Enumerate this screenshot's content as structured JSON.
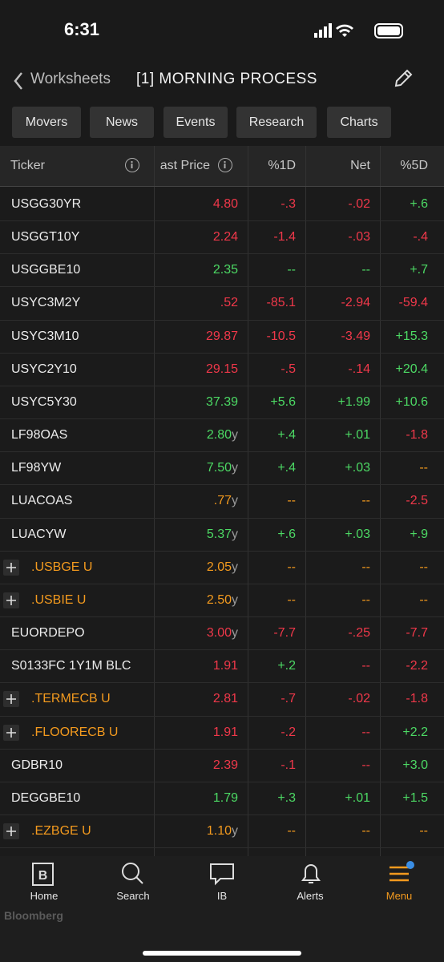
{
  "status": {
    "time": "6:31"
  },
  "header": {
    "back": "Worksheets",
    "title": "[1] MORNING PROCESS"
  },
  "tabs": [
    "Movers",
    "News",
    "Events",
    "Research",
    "Charts"
  ],
  "table": {
    "columns": [
      "Ticker",
      "ast Price",
      "%1D",
      "Net",
      "%5D"
    ],
    "rows": [
      {
        "ticker": "USGG30YR",
        "price": "4.80",
        "d1": "-.3",
        "net": "-.02",
        "d5": "+.6",
        "colors": [
          "r",
          "r",
          "r",
          "g"
        ]
      },
      {
        "ticker": "USGGT10Y",
        "price": "2.24",
        "d1": "-1.4",
        "net": "-.03",
        "d5": "-.4",
        "colors": [
          "r",
          "r",
          "r",
          "r"
        ]
      },
      {
        "ticker": "USGGBE10",
        "price": "2.35",
        "d1": "--",
        "net": "--",
        "d5": "+.7",
        "colors": [
          "g",
          "g",
          "g",
          "g"
        ]
      },
      {
        "ticker": "USYC3M2Y",
        "price": ".52",
        "d1": "-85.1",
        "net": "-2.94",
        "d5": "-59.4",
        "colors": [
          "r",
          "r",
          "r",
          "r"
        ]
      },
      {
        "ticker": "USYC3M10",
        "price": "29.87",
        "d1": "-10.5",
        "net": "-3.49",
        "d5": "+15.3",
        "colors": [
          "r",
          "r",
          "r",
          "g"
        ]
      },
      {
        "ticker": "USYC2Y10",
        "price": "29.15",
        "d1": "-.5",
        "net": "-.14",
        "d5": "+20.4",
        "colors": [
          "r",
          "r",
          "r",
          "g"
        ]
      },
      {
        "ticker": "USYC5Y30",
        "price": "37.39",
        "d1": "+5.6",
        "net": "+1.99",
        "d5": "+10.6",
        "colors": [
          "g",
          "g",
          "g",
          "g"
        ]
      },
      {
        "ticker": "LF98OAS",
        "price": "2.80",
        "unit": "y",
        "d1": "+.4",
        "net": "+.01",
        "d5": "-1.8",
        "colors": [
          "g",
          "g",
          "g",
          "r"
        ]
      },
      {
        "ticker": "LF98YW",
        "price": "7.50",
        "unit": "y",
        "d1": "+.4",
        "net": "+.03",
        "d5": "--",
        "colors": [
          "g",
          "g",
          "g",
          "o"
        ]
      },
      {
        "ticker": "LUACOAS",
        "price": ".77",
        "unit": "y",
        "d1": "--",
        "net": "--",
        "d5": "-2.5",
        "colors": [
          "o",
          "o",
          "o",
          "r"
        ]
      },
      {
        "ticker": "LUACYW",
        "price": "5.37",
        "unit": "y",
        "d1": "+.6",
        "net": "+.03",
        "d5": "+.9",
        "colors": [
          "g",
          "g",
          "g",
          "g"
        ]
      },
      {
        "ticker": ".USBGE U",
        "expandable": true,
        "price": "2.05",
        "unit": "y",
        "d1": "--",
        "net": "--",
        "d5": "--",
        "colors": [
          "o",
          "o",
          "o",
          "o"
        ]
      },
      {
        "ticker": ".USBIE U",
        "expandable": true,
        "price": "2.50",
        "unit": "y",
        "d1": "--",
        "net": "--",
        "d5": "--",
        "colors": [
          "o",
          "o",
          "o",
          "o"
        ]
      },
      {
        "ticker": "EUORDEPO",
        "price": "3.00",
        "unit": "y",
        "d1": "-7.7",
        "net": "-.25",
        "d5": "-7.7",
        "colors": [
          "r",
          "r",
          "r",
          "r"
        ]
      },
      {
        "ticker": "S0133FC 1Y1M BLC",
        "price": "1.91",
        "d1": "+.2",
        "net": "--",
        "d5": "-2.2",
        "colors": [
          "r",
          "g",
          "r",
          "r"
        ]
      },
      {
        "ticker": ".TERMECB U",
        "expandable": true,
        "price": "2.81",
        "d1": "-.7",
        "net": "-.02",
        "d5": "-1.8",
        "colors": [
          "r",
          "r",
          "r",
          "r"
        ]
      },
      {
        "ticker": ".FLOORECB U",
        "expandable": true,
        "price": "1.91",
        "d1": "-.2",
        "net": "--",
        "d5": "+2.2",
        "colors": [
          "r",
          "r",
          "r",
          "g"
        ]
      },
      {
        "ticker": "GDBR10",
        "price": "2.39",
        "d1": "-.1",
        "net": "--",
        "d5": "+3.0",
        "colors": [
          "r",
          "r",
          "r",
          "g"
        ]
      },
      {
        "ticker": "DEGGBE10",
        "price": "1.79",
        "d1": "+.3",
        "net": "+.01",
        "d5": "+1.5",
        "colors": [
          "g",
          "g",
          "g",
          "g"
        ]
      },
      {
        "ticker": ".EZBGE U",
        "expandable": true,
        "price": "1.10",
        "unit": "y",
        "d1": "--",
        "net": "--",
        "d5": "--",
        "colors": [
          "o",
          "o",
          "o",
          "o"
        ]
      }
    ]
  },
  "bottom_nav": {
    "items": [
      "Home",
      "Search",
      "IB",
      "Alerts",
      "Menu"
    ],
    "active": 4
  },
  "brand": "Bloomberg"
}
